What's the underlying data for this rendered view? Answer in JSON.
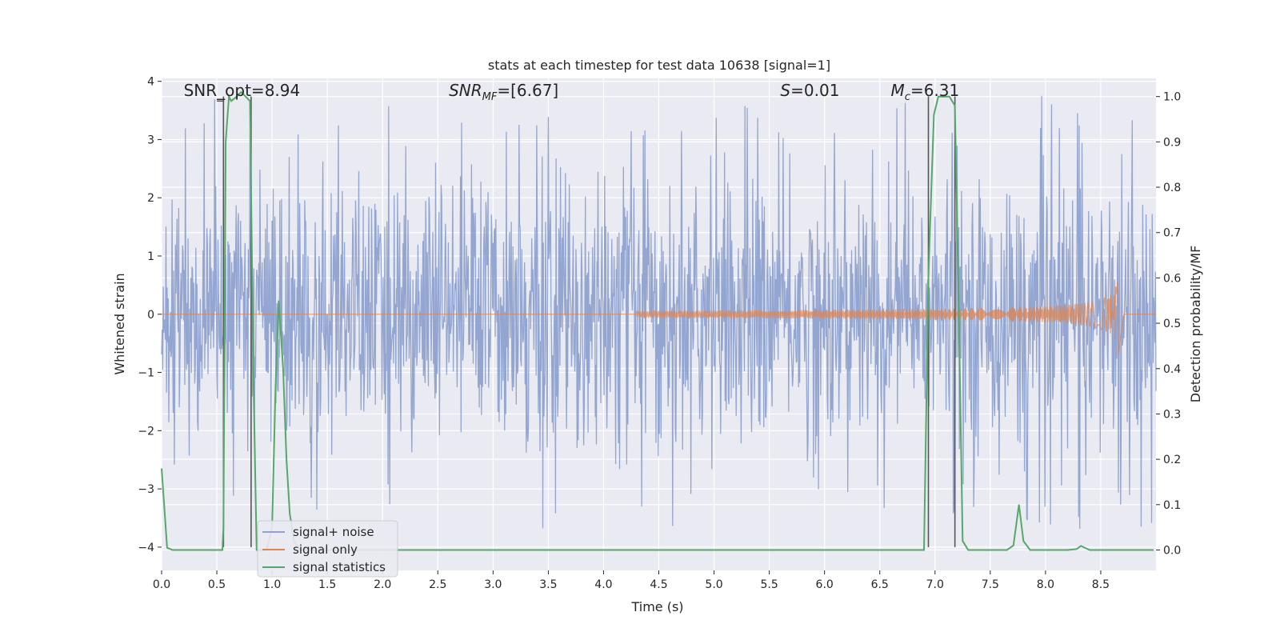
{
  "chart_data": {
    "type": "line",
    "title": "stats at each timestep for test data 10638 [signal=1]",
    "xlabel": "Time (s)",
    "ylabel": "Whitened strain",
    "ylabel_right": "Detection probability/MF",
    "xlim": [
      0.0,
      9.0
    ],
    "ylim": [
      -4.4,
      4.05
    ],
    "ylim_right": [
      -0.045,
      1.04
    ],
    "x_ticks": [
      "0.0",
      "0.5",
      "1.0",
      "1.5",
      "2.0",
      "2.5",
      "3.0",
      "3.5",
      "4.0",
      "4.5",
      "5.0",
      "5.5",
      "6.0",
      "6.5",
      "7.0",
      "7.5",
      "8.0",
      "8.5"
    ],
    "x_tick_values": [
      0.0,
      0.5,
      1.0,
      1.5,
      2.0,
      2.5,
      3.0,
      3.5,
      4.0,
      4.5,
      5.0,
      5.5,
      6.0,
      6.5,
      7.0,
      7.5,
      8.0,
      8.5
    ],
    "y_ticks": [
      "4",
      "3",
      "2",
      "1",
      "0",
      "−1",
      "−2",
      "−3",
      "−4"
    ],
    "y_tick_values": [
      4,
      3,
      2,
      1,
      0,
      -1,
      -2,
      -3,
      -4
    ],
    "y_ticks_right": [
      "1.0",
      "0.9",
      "0.8",
      "0.7",
      "0.6",
      "0.5",
      "0.4",
      "0.3",
      "0.2",
      "0.1",
      "0.0"
    ],
    "y_tick_values_right": [
      1.0,
      0.9,
      0.8,
      0.7,
      0.6,
      0.5,
      0.4,
      0.3,
      0.2,
      0.1,
      0.0
    ],
    "annotations": [
      {
        "text": "SNR_opt=8.94",
        "x": 0.2,
        "y": 3.75
      },
      {
        "text": "SNR_MF=[6.67]",
        "x": 2.6,
        "y": 3.75
      },
      {
        "text": "S=0.01",
        "x": 5.6,
        "y": 3.75
      },
      {
        "text": "M_c=6.31",
        "x": 6.6,
        "y": 3.75
      }
    ],
    "series": [
      {
        "name": "signal+ noise",
        "color": "#8ea2cf",
        "axis": "left",
        "description": "whitened strain noise, approx. within [-2.4, 2.4] with spikes to about ±3.7"
      },
      {
        "name": "signal only",
        "color": "#dd8452",
        "axis": "left",
        "chirp": {
          "start_x": 4.3,
          "end_x": 8.66,
          "peak_amplitude": 0.7
        }
      },
      {
        "name": "signal statistics",
        "color": "#55a868",
        "axis": "right",
        "x": [
          0.0,
          0.05,
          0.1,
          0.55,
          0.56,
          0.58,
          0.61,
          0.63,
          0.68,
          0.72,
          0.76,
          0.8,
          0.83,
          0.86,
          0.9,
          0.95,
          1.0,
          1.03,
          1.06,
          1.1,
          1.13,
          1.16,
          1.2,
          1.25,
          1.3,
          1.35,
          6.9,
          6.94,
          6.95,
          6.99,
          7.03,
          7.08,
          7.13,
          7.18,
          7.21,
          7.25,
          7.3,
          7.6,
          7.65,
          7.71,
          7.76,
          7.8,
          7.86,
          8.2,
          8.28,
          8.32,
          8.4,
          8.98
        ],
        "y": [
          0.18,
          0.005,
          0.0,
          0.0,
          0.05,
          0.9,
          1.0,
          0.99,
          1.0,
          1.01,
          1.0,
          0.99,
          0.4,
          0.0,
          0.0,
          0.0,
          0.05,
          0.35,
          0.55,
          0.4,
          0.2,
          0.08,
          0.02,
          0.0,
          0.0,
          0.0,
          0.0,
          0.6,
          0.68,
          0.96,
          1.0,
          1.0,
          1.0,
          0.98,
          0.6,
          0.02,
          0.0,
          0.0,
          0.0,
          0.01,
          0.1,
          0.02,
          0.0,
          0.0,
          0.002,
          0.009,
          0.0,
          0.0
        ]
      }
    ],
    "vlines": [
      {
        "x": 0.56,
        "color": "#555555",
        "label": "segment boundary"
      },
      {
        "x": 0.81,
        "color": "#555555",
        "label": "segment boundary"
      },
      {
        "x": 6.94,
        "color": "#555555",
        "label": "segment boundary"
      },
      {
        "x": 7.18,
        "color": "#555555",
        "label": "segment boundary"
      }
    ],
    "legend": {
      "placement": "lower-left",
      "entries": [
        "signal+ noise",
        "signal only",
        "signal statistics"
      ]
    },
    "background": "#eaeaf2",
    "grid": true
  }
}
